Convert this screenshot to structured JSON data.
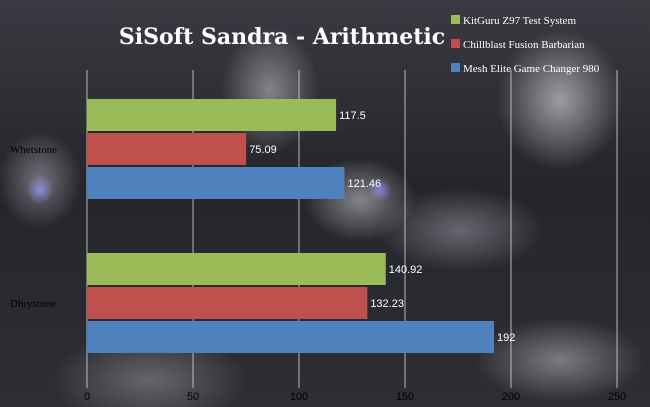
{
  "chart_data": {
    "type": "bar",
    "orientation": "horizontal",
    "title": "SiSoft Sandra - Arithmetic",
    "categories": [
      "Whetstone",
      "Dhrystone"
    ],
    "series": [
      {
        "name": "KitGuru Z97 Test System",
        "color": "#9bbb59",
        "values": [
          117.5,
          140.92
        ],
        "labels": [
          "117.5",
          "140.92"
        ]
      },
      {
        "name": "Chillblast Fusion Barbarian",
        "color": "#c0504d",
        "values": [
          75.09,
          132.23
        ],
        "labels": [
          "75.09",
          "132.23"
        ]
      },
      {
        "name": "Mesh Elite Game Changer 980",
        "color": "#4f81bd",
        "values": [
          121.46,
          192
        ],
        "labels": [
          "121.46",
          "192"
        ]
      }
    ],
    "xlim": [
      0,
      250
    ],
    "xticks": [
      0,
      50,
      100,
      150,
      200,
      250
    ],
    "xtick_labels": [
      "0",
      "50",
      "100",
      "150",
      "200",
      "250"
    ],
    "grid": true,
    "legend_position": "top-right"
  }
}
